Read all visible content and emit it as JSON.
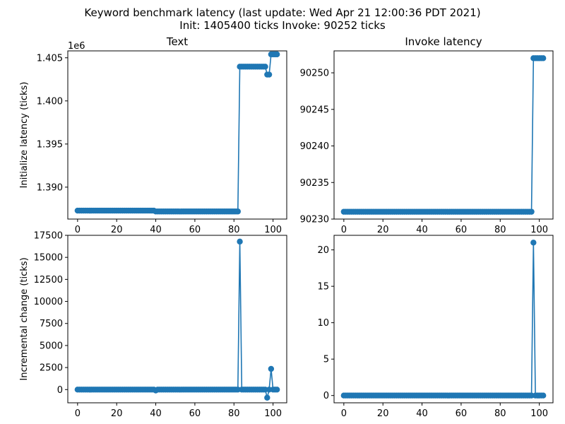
{
  "figure": {
    "title_line1": "Keyword benchmark latency (last update: Wed Apr 21 12:00:36 PDT 2021)",
    "title_line2": "Init: 1405400 ticks Invoke: 90252 ticks",
    "series_color": "#1f77b4"
  },
  "chart_data": [
    {
      "type": "line",
      "title": "Text",
      "ylabel": "Initialize latency (ticks)",
      "offset_label": "1e6",
      "xlim": [
        -5,
        107
      ],
      "ylim": [
        1.3863,
        1.4058
      ],
      "xticks": [
        0,
        20,
        40,
        60,
        80,
        100
      ],
      "xtick_labels": [
        "0",
        "20",
        "40",
        "60",
        "80",
        "100"
      ],
      "yticks": [
        1.39,
        1.395,
        1.4,
        1.405
      ],
      "ytick_labels": [
        "1.390",
        "1.395",
        "1.400",
        "1.405"
      ],
      "segments": [
        {
          "x_from": 0,
          "x_to": 39,
          "y": 1.38728
        },
        {
          "x_from": 40,
          "x_to": 82,
          "y": 1.38718
        },
        {
          "x_from": 83,
          "x_to": 96,
          "y": 1.40397
        },
        {
          "x_from": 97,
          "x_to": 98,
          "y": 1.40305
        },
        {
          "x_from": 99,
          "x_to": 102,
          "y": 1.4054
        }
      ]
    },
    {
      "type": "line",
      "title": "Invoke latency",
      "ylabel": "",
      "xlim": [
        -5,
        107
      ],
      "ylim": [
        90230,
        90253
      ],
      "xticks": [
        0,
        20,
        40,
        60,
        80,
        100
      ],
      "xtick_labels": [
        "0",
        "20",
        "40",
        "60",
        "80",
        "100"
      ],
      "yticks": [
        90230,
        90235,
        90240,
        90245,
        90250
      ],
      "ytick_labels": [
        "90230",
        "90235",
        "90240",
        "90245",
        "90250"
      ],
      "segments": [
        {
          "x_from": 0,
          "x_to": 96,
          "y": 90231
        },
        {
          "x_from": 97,
          "x_to": 102,
          "y": 90252
        }
      ]
    },
    {
      "type": "line",
      "title": "",
      "ylabel": "Incremental change (ticks)",
      "xlim": [
        -5,
        107
      ],
      "ylim": [
        -1500,
        17500
      ],
      "xticks": [
        0,
        20,
        40,
        60,
        80,
        100
      ],
      "xtick_labels": [
        "0",
        "20",
        "40",
        "60",
        "80",
        "100"
      ],
      "yticks": [
        0,
        2500,
        5000,
        7500,
        10000,
        12500,
        15000,
        17500
      ],
      "ytick_labels": [
        "0",
        "2500",
        "5000",
        "7500",
        "10000",
        "12500",
        "15000",
        "17500"
      ],
      "baseline": {
        "x_from": 0,
        "x_to": 102,
        "y": 0
      },
      "overrides": [
        {
          "x": 40,
          "y": -100
        },
        {
          "x": 83,
          "y": 16790
        },
        {
          "x": 97,
          "y": -920
        },
        {
          "x": 99,
          "y": 2350
        }
      ]
    },
    {
      "type": "line",
      "title": "",
      "ylabel": "",
      "xlim": [
        -5,
        107
      ],
      "ylim": [
        -1,
        22
      ],
      "xticks": [
        0,
        20,
        40,
        60,
        80,
        100
      ],
      "xtick_labels": [
        "0",
        "20",
        "40",
        "60",
        "80",
        "100"
      ],
      "yticks": [
        0,
        5,
        10,
        15,
        20
      ],
      "ytick_labels": [
        "0",
        "5",
        "10",
        "15",
        "20"
      ],
      "baseline": {
        "x_from": 0,
        "x_to": 102,
        "y": 0
      },
      "overrides": [
        {
          "x": 97,
          "y": 21
        }
      ]
    }
  ]
}
